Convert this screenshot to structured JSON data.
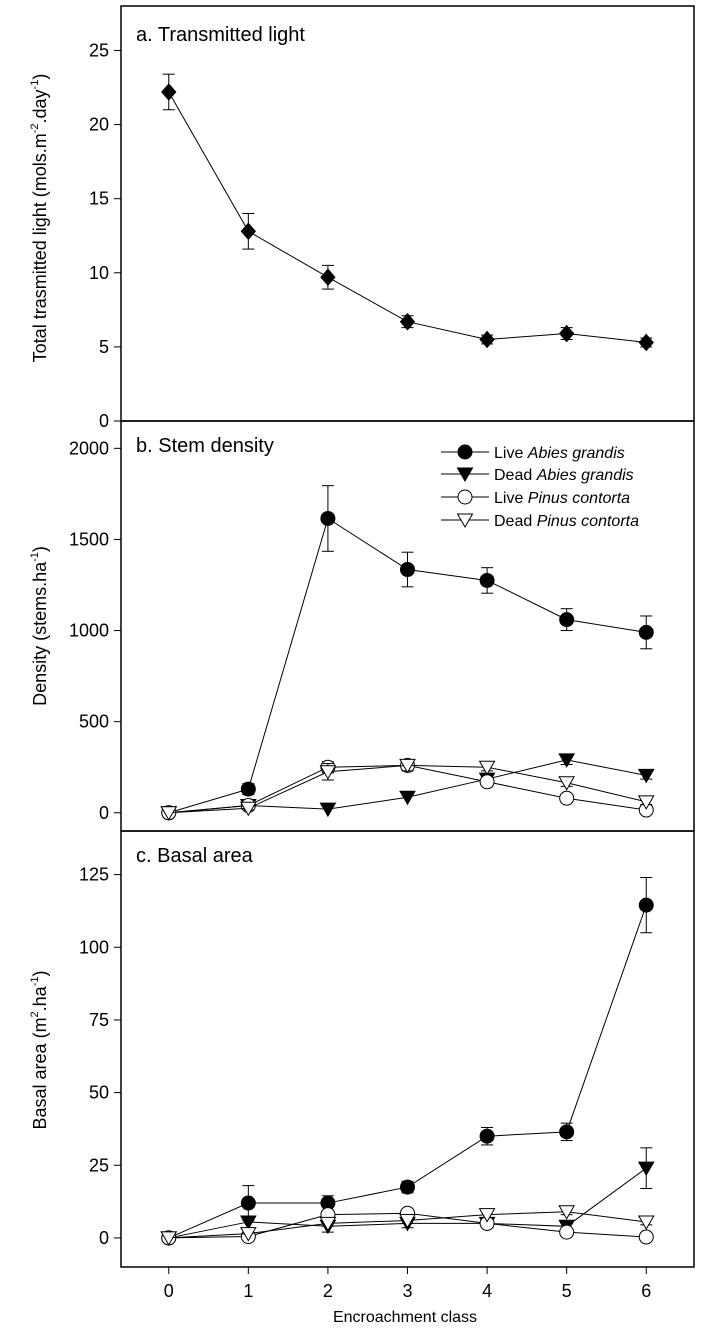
{
  "chart_data": [
    {
      "type": "line",
      "panel_label": "a. Transmitted light",
      "ylabel_main": "Total trasmitted light (mols.m",
      "ylabel_sup1": "-2",
      "ylabel_mid": ".day",
      "ylabel_sup2": "-1",
      "ylabel_end": ")",
      "ylim": [
        0,
        28
      ],
      "yticks": [
        0,
        5,
        10,
        15,
        20,
        25
      ],
      "x": [
        0,
        1,
        2,
        3,
        4,
        5,
        6
      ],
      "series": [
        {
          "marker": "diamond",
          "values": [
            22.2,
            12.8,
            9.7,
            6.7,
            5.5,
            5.9,
            5.3
          ],
          "errors": [
            1.2,
            1.2,
            0.8,
            0.4,
            0.3,
            0.4,
            0.3
          ]
        }
      ]
    },
    {
      "type": "line",
      "panel_label": "b. Stem density",
      "ylabel_main": "Density (stems.ha",
      "ylabel_sup1": "-1",
      "ylabel_end": ")",
      "ylim": [
        -100,
        2150
      ],
      "yticks": [
        0,
        500,
        1000,
        1500,
        2000
      ],
      "x": [
        0,
        1,
        2,
        3,
        4,
        5,
        6
      ],
      "legend": [
        {
          "prefix": "Live ",
          "species": "Abies grandis",
          "marker": "circle-filled"
        },
        {
          "prefix": "Dead ",
          "species": "Abies grandis",
          "marker": "triangle-down-filled"
        },
        {
          "prefix": "Live ",
          "species": "Pinus contorta",
          "marker": "circle-open"
        },
        {
          "prefix": "Dead ",
          "species": "Pinus contorta",
          "marker": "triangle-down-open"
        }
      ],
      "series": [
        {
          "marker": "circle-filled",
          "values": [
            0,
            130,
            1615,
            1335,
            1275,
            1060,
            990
          ],
          "errors": [
            0,
            30,
            180,
            95,
            70,
            60,
            90
          ]
        },
        {
          "marker": "triangle-down-filled",
          "values": [
            0,
            40,
            20,
            85,
            185,
            290,
            205
          ],
          "errors": [
            0,
            0,
            0,
            0,
            0,
            25,
            20
          ]
        },
        {
          "marker": "circle-open",
          "values": [
            0,
            40,
            250,
            260,
            170,
            80,
            15
          ],
          "errors": [
            0,
            10,
            30,
            25,
            20,
            15,
            10
          ]
        },
        {
          "marker": "triangle-down-open",
          "values": [
            0,
            25,
            225,
            260,
            250,
            165,
            60
          ],
          "errors": [
            0,
            10,
            45,
            30,
            20,
            20,
            15
          ]
        }
      ]
    },
    {
      "type": "line",
      "panel_label": "c. Basal area",
      "ylabel_main": "Basal area (m",
      "ylabel_sup1": "2",
      "ylabel_mid": ".ha",
      "ylabel_sup2": "-1",
      "ylabel_end": ")",
      "xlabel": "Encroachment class",
      "ylim": [
        -10,
        140
      ],
      "yticks": [
        0,
        25,
        50,
        75,
        100,
        125
      ],
      "xticks": [
        0,
        1,
        2,
        3,
        4,
        5,
        6
      ],
      "x": [
        0,
        1,
        2,
        3,
        4,
        5,
        6
      ],
      "series": [
        {
          "marker": "circle-filled",
          "values": [
            0,
            12,
            12,
            17.5,
            35,
            36.5,
            114.5
          ],
          "errors": [
            0,
            6,
            2.5,
            2,
            3,
            3,
            9.5
          ]
        },
        {
          "marker": "triangle-down-filled",
          "values": [
            0,
            5.5,
            4,
            5,
            5,
            4,
            24
          ],
          "errors": [
            0,
            0,
            2,
            1.5,
            1.5,
            1,
            7
          ]
        },
        {
          "marker": "circle-open",
          "values": [
            0,
            0.5,
            8,
            8.5,
            5,
            2,
            0.3
          ],
          "errors": [
            0,
            0,
            1,
            1,
            1,
            0.5,
            0
          ]
        },
        {
          "marker": "triangle-down-open",
          "values": [
            0,
            1.5,
            5,
            6,
            8,
            9,
            5.5
          ],
          "errors": [
            0,
            0,
            1,
            1,
            1,
            1,
            1
          ]
        }
      ]
    }
  ]
}
